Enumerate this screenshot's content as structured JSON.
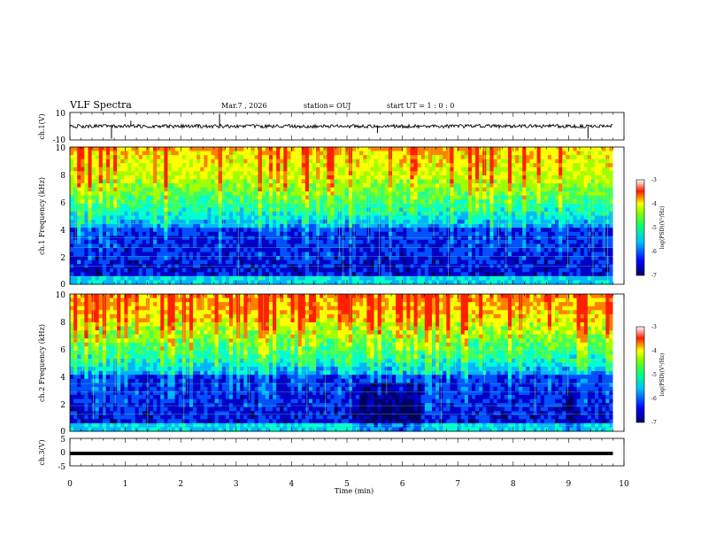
{
  "header": {
    "title": "VLF Spectra",
    "date": "Mar.7 , 2026",
    "station": "station= OUJ",
    "start_ut": "start UT = 1 : 0 : 0"
  },
  "chart_data": [
    {
      "type": "line",
      "panel": "ch1-waveform",
      "ylabel": "ch.1(V)",
      "ylim": [
        -10,
        10
      ],
      "yticks": [
        "10",
        "-10"
      ],
      "xlim": [
        0,
        10
      ],
      "baseline": 0,
      "spikes": [
        {
          "x": 0.75,
          "y": -9
        },
        {
          "x": 1.1,
          "y": 4
        },
        {
          "x": 2.7,
          "y": 9
        },
        {
          "x": 5.55,
          "y": -5
        },
        {
          "x": 9.35,
          "y": -9
        }
      ],
      "color": "#000000"
    },
    {
      "type": "heatmap",
      "panel": "ch1-spectrogram",
      "ylabel": "ch.1 Frequency (kHz)",
      "ylim": [
        0,
        10
      ],
      "yticks": [
        "0",
        "2",
        "4",
        "6",
        "8",
        "10"
      ],
      "xlim": [
        0,
        9.8
      ],
      "colorbar": {
        "label": "log(PSD)(V²/Hz)",
        "range": [
          -7,
          -3
        ],
        "ticks": [
          "-3",
          "-4",
          "-5",
          "-6",
          "-7"
        ]
      }
    },
    {
      "type": "heatmap",
      "panel": "ch2-spectrogram",
      "ylabel": "ch.2 Frequency (kHz)",
      "ylim": [
        0,
        10
      ],
      "yticks": [
        "0",
        "2",
        "4",
        "6",
        "8",
        "10"
      ],
      "xlim": [
        0,
        9.8
      ],
      "colorbar": {
        "label": "log(PSD)(V²/Hz)",
        "range": [
          -7,
          -3
        ],
        "ticks": [
          "-3",
          "-4",
          "-5",
          "-6",
          "-7"
        ]
      }
    },
    {
      "type": "line",
      "panel": "ch3-waveform",
      "ylabel": "ch.3(V)",
      "ylim": [
        -5,
        5
      ],
      "yticks": [
        "5",
        "0",
        "-5"
      ],
      "xlim": [
        0,
        9.8
      ],
      "value": -0.5,
      "color": "#000000"
    }
  ],
  "xaxis": {
    "label": "Time (min)",
    "ticks": [
      "0",
      "1",
      "2",
      "3",
      "4",
      "5",
      "6",
      "7",
      "8",
      "9",
      "10"
    ]
  },
  "colormap": [
    "#000080",
    "#0000ff",
    "#00a0ff",
    "#00ffff",
    "#00ff80",
    "#80ff00",
    "#ffff00",
    "#ff8000",
    "#ff0000",
    "#ffffff"
  ]
}
